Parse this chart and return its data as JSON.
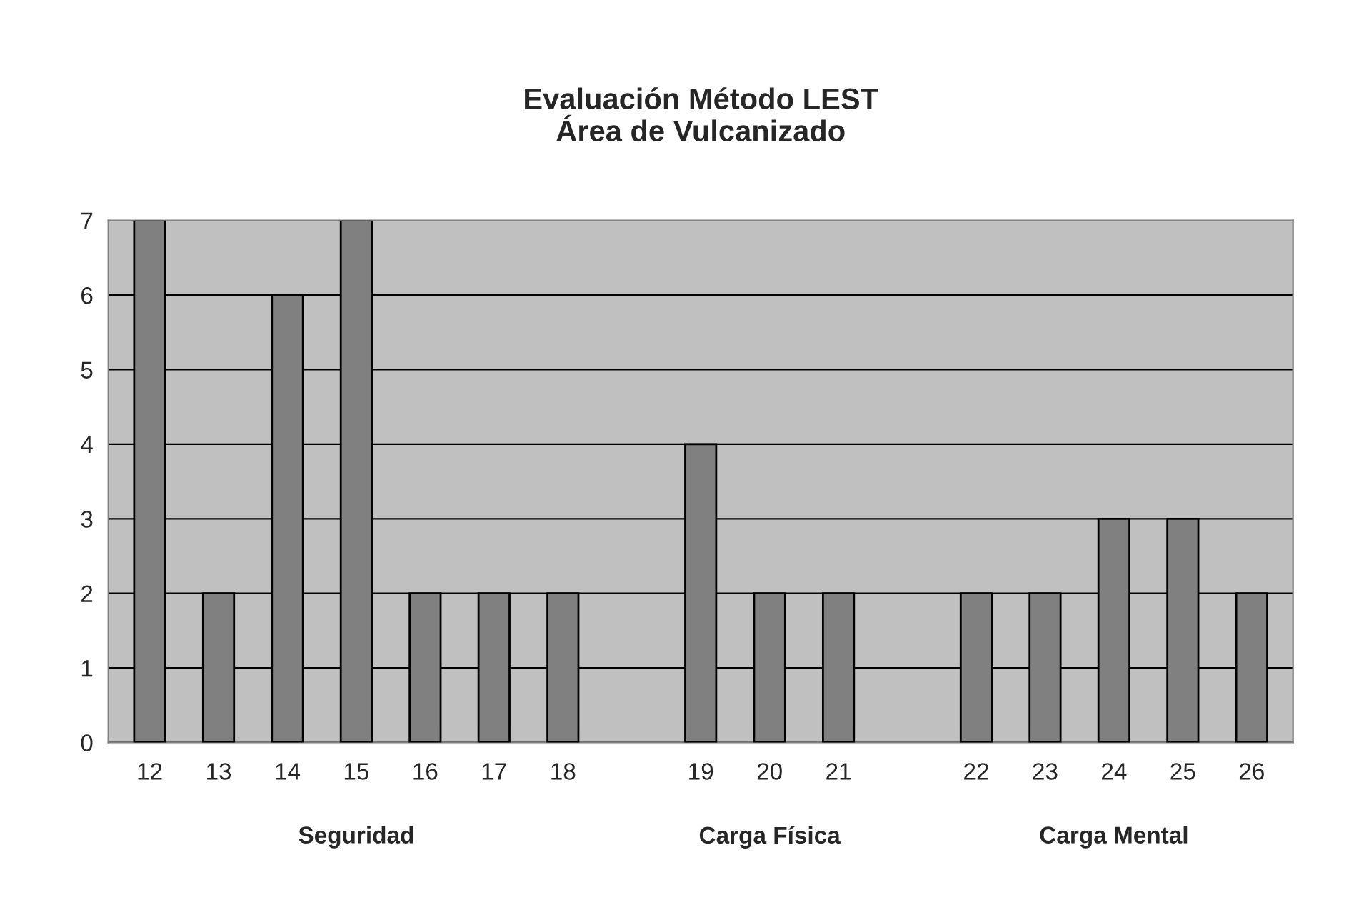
{
  "chart_data": {
    "type": "bar",
    "title": "Evaluación Método LEST\nÁrea de Vulcanizado",
    "categories": [
      "12",
      "13",
      "14",
      "15",
      "16",
      "17",
      "18",
      null,
      "19",
      "20",
      "21",
      null,
      "22",
      "23",
      "24",
      "25",
      "26"
    ],
    "values": [
      7,
      2,
      6,
      7,
      2,
      2,
      2,
      null,
      4,
      2,
      2,
      null,
      2,
      2,
      3,
      3,
      2
    ],
    "color": "#808080",
    "ylim": [
      0,
      7
    ],
    "yticks": [
      0,
      1,
      2,
      3,
      4,
      5,
      6,
      7
    ],
    "grid": "y",
    "annotations": [
      "Seguridad",
      "Carga Física",
      "Carga Mental"
    ]
  }
}
